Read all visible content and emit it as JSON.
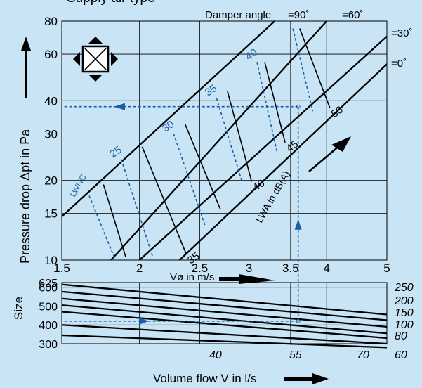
{
  "header_fragment": "Supply air type",
  "chart_data": [
    {
      "type": "line",
      "title": "",
      "xlabel": "Vø in m/s",
      "ylabel": "Pressure drop Δpt in Pa",
      "xscale": "log",
      "yscale": "log",
      "xlim": [
        1.5,
        5
      ],
      "ylim": [
        10,
        80
      ],
      "xticks": [
        1.5,
        2,
        2.5,
        3,
        3.5,
        4,
        5
      ],
      "xtick_labels": [
        "1.5",
        "2",
        "2.5",
        "3",
        "3.5",
        "4",
        "5"
      ],
      "yticks": [
        10,
        15,
        20,
        30,
        40,
        60,
        80
      ],
      "ytick_labels": [
        "10",
        "15",
        "20",
        "30",
        "40",
        "60",
        "80"
      ],
      "grid": true,
      "damper_angle_title": "Damper angle",
      "damper_lines": [
        {
          "name": "=90˚",
          "points": [
            [
              1.5,
              14.6
            ],
            [
              3.3,
              80
            ]
          ]
        },
        {
          "name": "=60˚",
          "points": [
            [
              1.8,
              10
            ],
            [
              4.0,
              80
            ]
          ]
        },
        {
          "name": "=30˚",
          "points": [
            [
              2.0,
              10
            ],
            [
              5.0,
              70
            ]
          ]
        },
        {
          "name": "=0˚",
          "points": [
            [
              2.32,
              10
            ],
            [
              5.0,
              55
            ]
          ]
        }
      ],
      "lwa_label": "LWA in dB(A)",
      "lwa_solid_lines": [
        {
          "label": "",
          "points": [
            [
              1.75,
              19.3
            ],
            [
              1.9,
              10.3
            ]
          ]
        },
        {
          "label": "35",
          "points": [
            [
              2.02,
              26.8
            ],
            [
              2.38,
              10.5
            ]
          ]
        },
        {
          "label": "",
          "points": [
            [
              2.37,
              32.5
            ],
            [
              2.7,
              15.5
            ]
          ]
        },
        {
          "label": "40",
          "points": [
            [
              2.77,
              43.5
            ],
            [
              3.03,
              19.8
            ]
          ]
        },
        {
          "label": "45",
          "points": [
            [
              3.18,
              56.0
            ],
            [
              3.43,
              27.8
            ]
          ]
        },
        {
          "label": "50",
          "points": [
            [
              3.62,
              75.0
            ],
            [
              4.05,
              37.5
            ]
          ]
        }
      ],
      "lwnc_label": "LWNC",
      "lwnc_dashed_lines": [
        {
          "label": "",
          "points": [
            [
              1.66,
              17.5
            ],
            [
              1.83,
              10.0
            ]
          ]
        },
        {
          "label": "25",
          "points": [
            [
              1.87,
              24.0
            ],
            [
              2.1,
              10.3
            ]
          ]
        },
        {
          "label": "30",
          "points": [
            [
              2.27,
              30.0
            ],
            [
              2.55,
              13.5
            ]
          ]
        },
        {
          "label": "35",
          "points": [
            [
              2.66,
              41.0
            ],
            [
              2.92,
              20.0
            ]
          ]
        },
        {
          "label": "40",
          "points": [
            [
              3.09,
              56.0
            ],
            [
              3.33,
              25.5
            ]
          ]
        },
        {
          "label": "",
          "points": [
            [
              3.53,
              75.0
            ],
            [
              3.8,
              36.5
            ]
          ]
        }
      ],
      "example": {
        "velocity": 3.6,
        "pressure": 38
      }
    },
    {
      "type": "line",
      "title": "",
      "xlabel": "Volume flow V in l/s",
      "ylabel": "Size",
      "ylim": [
        300,
        625
      ],
      "yticks": [
        300,
        400,
        500,
        600,
        625
      ],
      "ytick_labels": [
        "300",
        "400",
        "500",
        "600",
        "625"
      ],
      "grid": true,
      "size_lines": [
        {
          "label": "250",
          "y_left": 615,
          "y_right": 455
        },
        {
          "label": "200",
          "y_left": 577,
          "y_right": 425
        },
        {
          "label": "150",
          "y_left": 540,
          "y_right": 390
        },
        {
          "label": "100",
          "y_left": 505,
          "y_right": 355
        },
        {
          "label": "80",
          "y_left": 470,
          "y_right": 330
        },
        {
          "label": "60",
          "y_left": 400,
          "y_right": 300
        },
        {
          "label": "",
          "y_left": 345,
          "y_right": 280
        }
      ],
      "flow_labels": [
        "40",
        "55",
        "70",
        "60",
        "80",
        "100",
        "150",
        "200",
        "250"
      ],
      "example_size": 420
    }
  ]
}
